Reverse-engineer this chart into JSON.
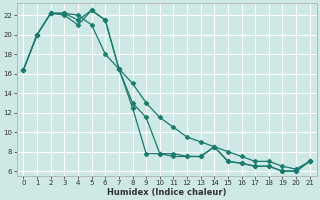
{
  "xlabel": "Humidex (Indice chaleur)",
  "background_color": "#cde8e5",
  "grid_color": "#ffffff",
  "line_color": "#1a7a6e",
  "xlim": [
    -0.5,
    21.5
  ],
  "ylim": [
    5.5,
    23.2
  ],
  "xticks": [
    0,
    1,
    2,
    3,
    4,
    5,
    6,
    7,
    8,
    9,
    10,
    11,
    12,
    13,
    14,
    15,
    16,
    17,
    18,
    19,
    20,
    21
  ],
  "yticks": [
    6,
    8,
    10,
    12,
    14,
    16,
    18,
    20,
    22
  ],
  "series1_x": [
    0,
    1,
    2,
    3,
    4,
    5,
    6,
    7,
    8,
    9,
    10,
    11,
    12,
    13,
    14,
    15,
    16,
    17,
    18,
    19,
    20,
    21
  ],
  "series1_y": [
    16.4,
    20.0,
    22.2,
    22.2,
    22.0,
    21.0,
    18.0,
    16.5,
    15.0,
    13.0,
    11.5,
    10.5,
    9.5,
    9.0,
    8.5,
    8.0,
    7.5,
    7.0,
    7.0,
    6.5,
    6.2,
    7.0
  ],
  "series2_x": [
    0,
    1,
    2,
    3,
    4,
    5,
    6,
    7,
    8,
    9,
    10,
    11,
    12,
    13,
    14,
    15,
    16,
    17,
    18,
    19,
    20,
    21
  ],
  "series2_y": [
    16.4,
    20.0,
    22.2,
    22.2,
    21.5,
    22.5,
    21.5,
    16.5,
    13.0,
    11.5,
    7.8,
    7.8,
    7.5,
    7.5,
    8.5,
    7.0,
    6.8,
    6.5,
    6.5,
    6.0,
    6.0,
    7.0
  ],
  "series3_x": [
    0,
    1,
    2,
    3,
    4,
    5,
    6,
    7,
    8,
    9,
    10,
    11,
    12,
    13,
    14,
    15,
    16,
    17,
    18,
    19,
    20,
    21
  ],
  "series3_y": [
    16.4,
    20.0,
    22.2,
    22.0,
    21.0,
    22.5,
    21.5,
    16.5,
    12.5,
    7.8,
    7.8,
    7.5,
    7.5,
    7.5,
    8.5,
    7.0,
    6.8,
    6.5,
    6.5,
    6.0,
    6.0,
    7.0
  ]
}
